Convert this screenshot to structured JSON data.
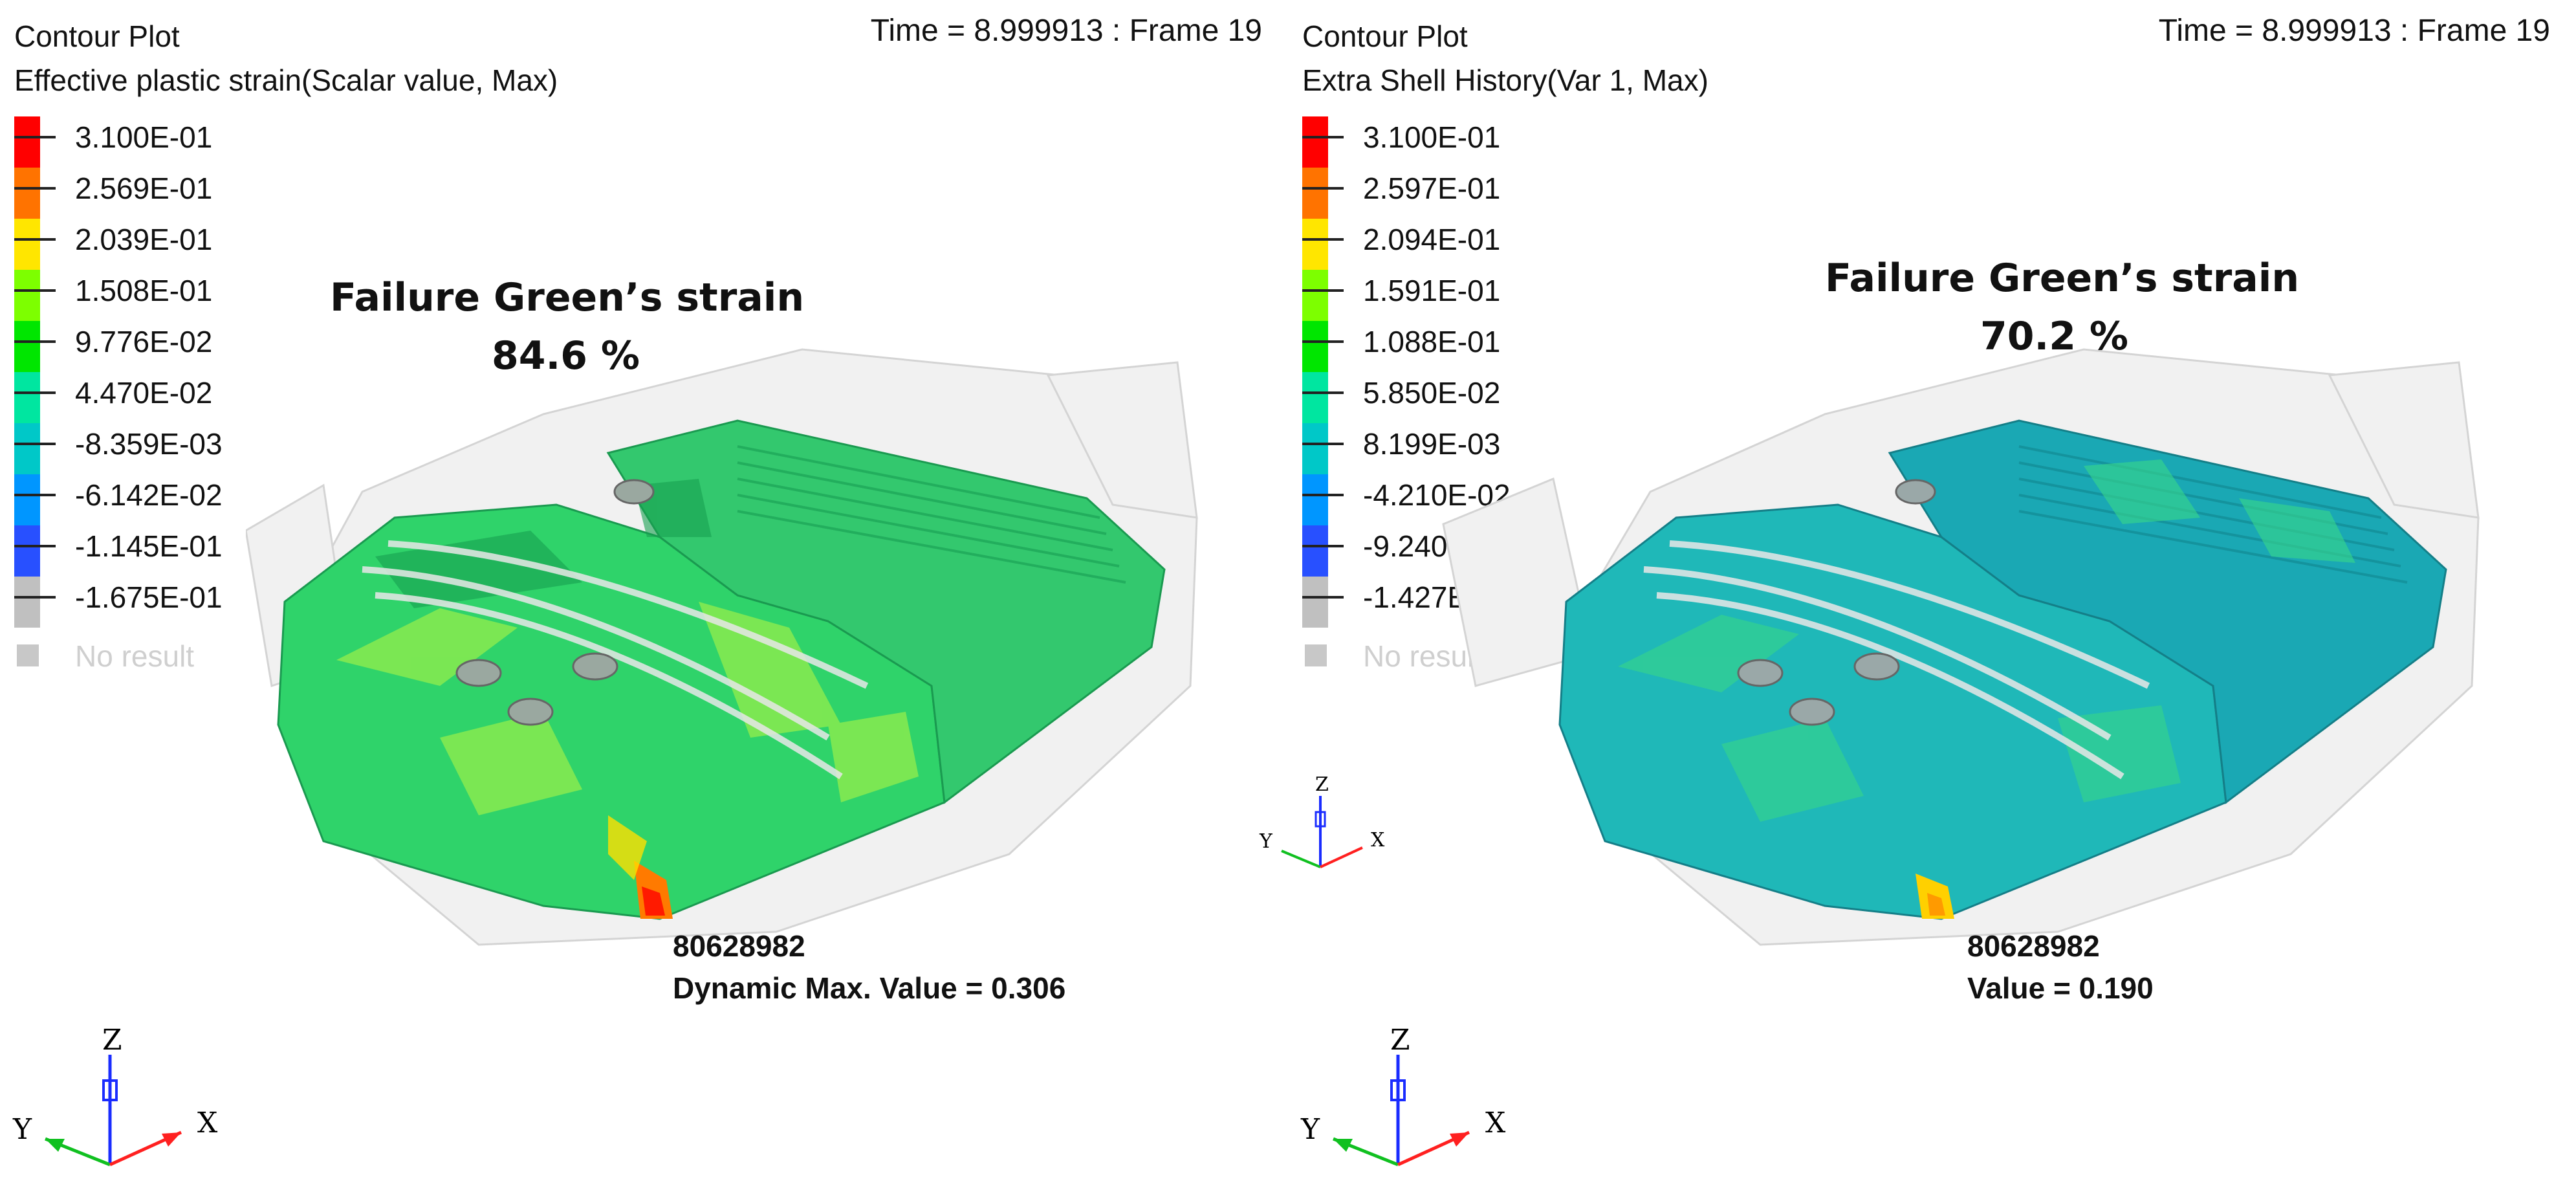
{
  "left": {
    "plot_title": "Contour Plot",
    "result_type": "Effective plastic strain(Scalar value, Max)",
    "time_frame": "Time = 8.999913 : Frame 19",
    "legend": [
      "3.100E-01",
      "2.569E-01",
      "2.039E-01",
      "1.508E-01",
      "9.776E-02",
      "4.470E-02",
      "-8.359E-03",
      "-6.142E-02",
      "-1.145E-01",
      "-1.675E-01"
    ],
    "no_result": "No result",
    "annotation_title": "Failure Green’s strain",
    "annotation_value": "84.6 %",
    "node_id": "80628982",
    "value_readout": "Dynamic Max. Value =  0.306",
    "axes": {
      "z": "Z",
      "y": "Y",
      "x": "X"
    }
  },
  "right": {
    "plot_title": "Contour Plot",
    "result_type": "Extra Shell History(Var 1, Max)",
    "time_frame": "Time = 8.999913 : Frame 19",
    "legend": [
      "3.100E-01",
      "2.597E-01",
      "2.094E-01",
      "1.591E-01",
      "1.088E-01",
      "5.850E-02",
      "8.199E-03",
      "-4.210E-02",
      "-9.240E-02",
      "-1.427E-01"
    ],
    "no_result": "No result",
    "annotation_title": "Failure Green’s strain",
    "annotation_value": "70.2 %",
    "node_id": "80628982",
    "value_readout": "Value = 0.190",
    "axes": {
      "z": "Z",
      "y": "Y",
      "x": "X"
    }
  },
  "legend_colors": [
    "#ff0000",
    "#ff7300",
    "#ffe600",
    "#7dff00",
    "#00e600",
    "#00e6a0",
    "#00c8c8",
    "#0096ff",
    "#2850ff",
    "#c0c0c0"
  ],
  "left_model_colors": {
    "base": "#2fd36a",
    "highlight": "#9bf04a",
    "hot": "#ff3000",
    "dark": "#18a050"
  },
  "right_model_colors": {
    "base": "#1fb8b8",
    "highlight": "#36d48c",
    "hot": "#ffd000",
    "dark": "#168f98"
  }
}
